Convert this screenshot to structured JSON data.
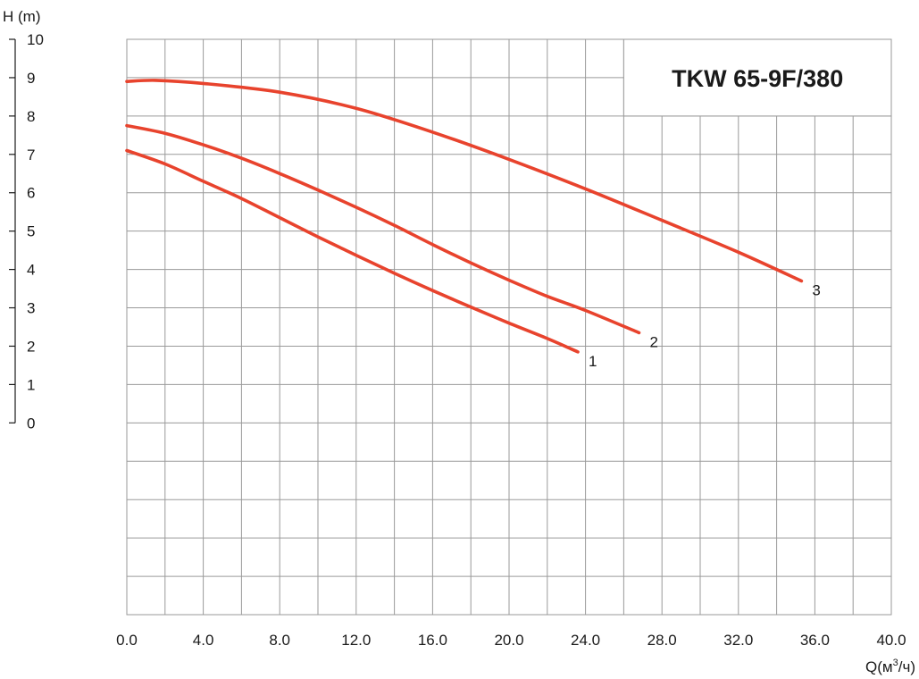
{
  "chart_data": {
    "type": "line",
    "title": "TKW 65-9F/380",
    "xlabel": "Q(м³/ч)",
    "ylabel": "H (m)",
    "xlim": [
      0,
      40
    ],
    "ylim": [
      0,
      10
    ],
    "x_ticks": [
      "0.0",
      "4.0",
      "8.0",
      "12.0",
      "16.0",
      "20.0",
      "24.0",
      "28.0",
      "32.0",
      "36.0",
      "40.0"
    ],
    "y_ticks": [
      "0",
      "1",
      "2",
      "3",
      "4",
      "5",
      "6",
      "7",
      "8",
      "9",
      "10"
    ],
    "grid": true,
    "line_color": "#e8432d",
    "series": [
      {
        "name": "1",
        "points": [
          [
            0,
            7.1
          ],
          [
            2,
            6.75
          ],
          [
            4,
            6.3
          ],
          [
            6,
            5.85
          ],
          [
            8,
            5.35
          ],
          [
            10,
            4.85
          ],
          [
            12,
            4.37
          ],
          [
            14,
            3.9
          ],
          [
            16,
            3.45
          ],
          [
            18,
            3.02
          ],
          [
            20,
            2.6
          ],
          [
            22,
            2.2
          ],
          [
            23.6,
            1.85
          ]
        ]
      },
      {
        "name": "2",
        "points": [
          [
            0,
            7.75
          ],
          [
            2,
            7.55
          ],
          [
            4,
            7.25
          ],
          [
            6,
            6.9
          ],
          [
            8,
            6.5
          ],
          [
            10,
            6.07
          ],
          [
            12,
            5.62
          ],
          [
            14,
            5.15
          ],
          [
            16,
            4.65
          ],
          [
            18,
            4.17
          ],
          [
            20,
            3.72
          ],
          [
            22,
            3.3
          ],
          [
            24,
            2.93
          ],
          [
            26.8,
            2.35
          ]
        ]
      },
      {
        "name": "3",
        "points": [
          [
            0,
            8.9
          ],
          [
            1.5,
            8.93
          ],
          [
            4,
            8.85
          ],
          [
            8,
            8.62
          ],
          [
            12,
            8.2
          ],
          [
            16,
            7.58
          ],
          [
            20,
            6.87
          ],
          [
            24,
            6.1
          ],
          [
            28,
            5.28
          ],
          [
            32,
            4.45
          ],
          [
            35.3,
            3.7
          ]
        ]
      }
    ]
  }
}
